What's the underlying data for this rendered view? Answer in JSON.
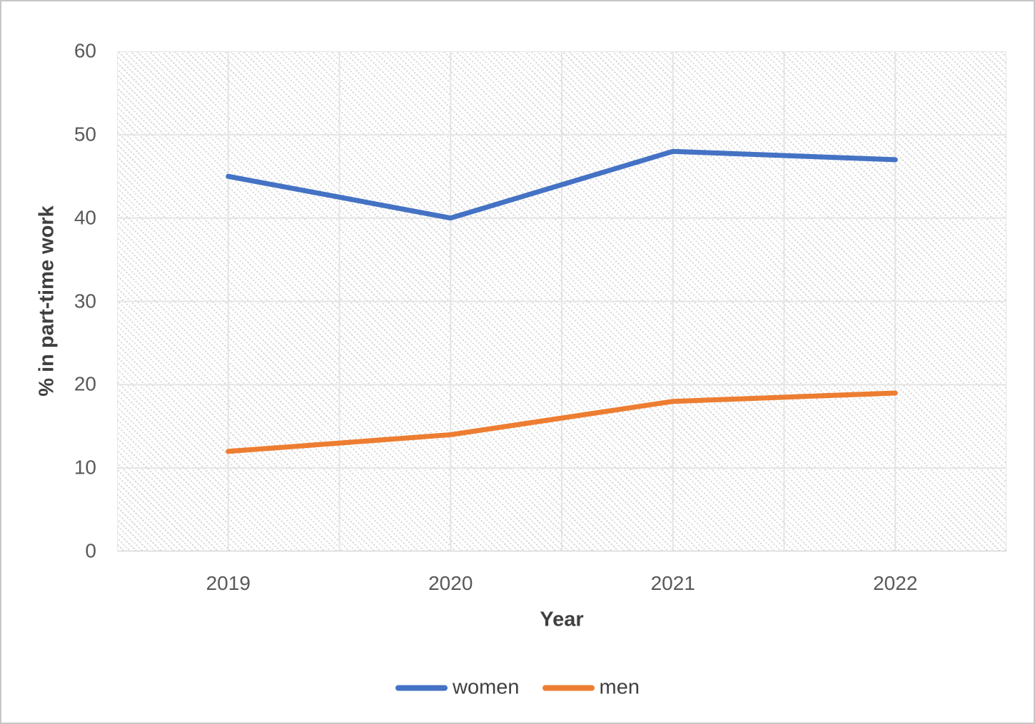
{
  "chart_data": {
    "type": "line",
    "categories": [
      "2019",
      "2020",
      "2021",
      "2022"
    ],
    "series": [
      {
        "name": "women",
        "values": [
          45,
          40,
          48,
          47
        ],
        "color": "#4472C4"
      },
      {
        "name": "men",
        "values": [
          12,
          14,
          18,
          19
        ],
        "color": "#ED7D31"
      }
    ],
    "xlabel": "Year",
    "ylabel": "% in part-time work",
    "ylim": [
      0,
      60
    ],
    "ytick_step": 10,
    "yticks": [
      "0",
      "10",
      "20",
      "30",
      "40",
      "50",
      "60"
    ],
    "grid": "on",
    "vertical_gridline_divisions": 8,
    "legend_position": "bottom",
    "plot_background": "diagonal-dotted-hatch",
    "colors": {
      "gridline": "#e4e4e4",
      "axis_line": "#c9c9c9",
      "tick_text": "#595959",
      "axis_title_text": "#3f3f3f",
      "legend_text": "#404040"
    }
  }
}
